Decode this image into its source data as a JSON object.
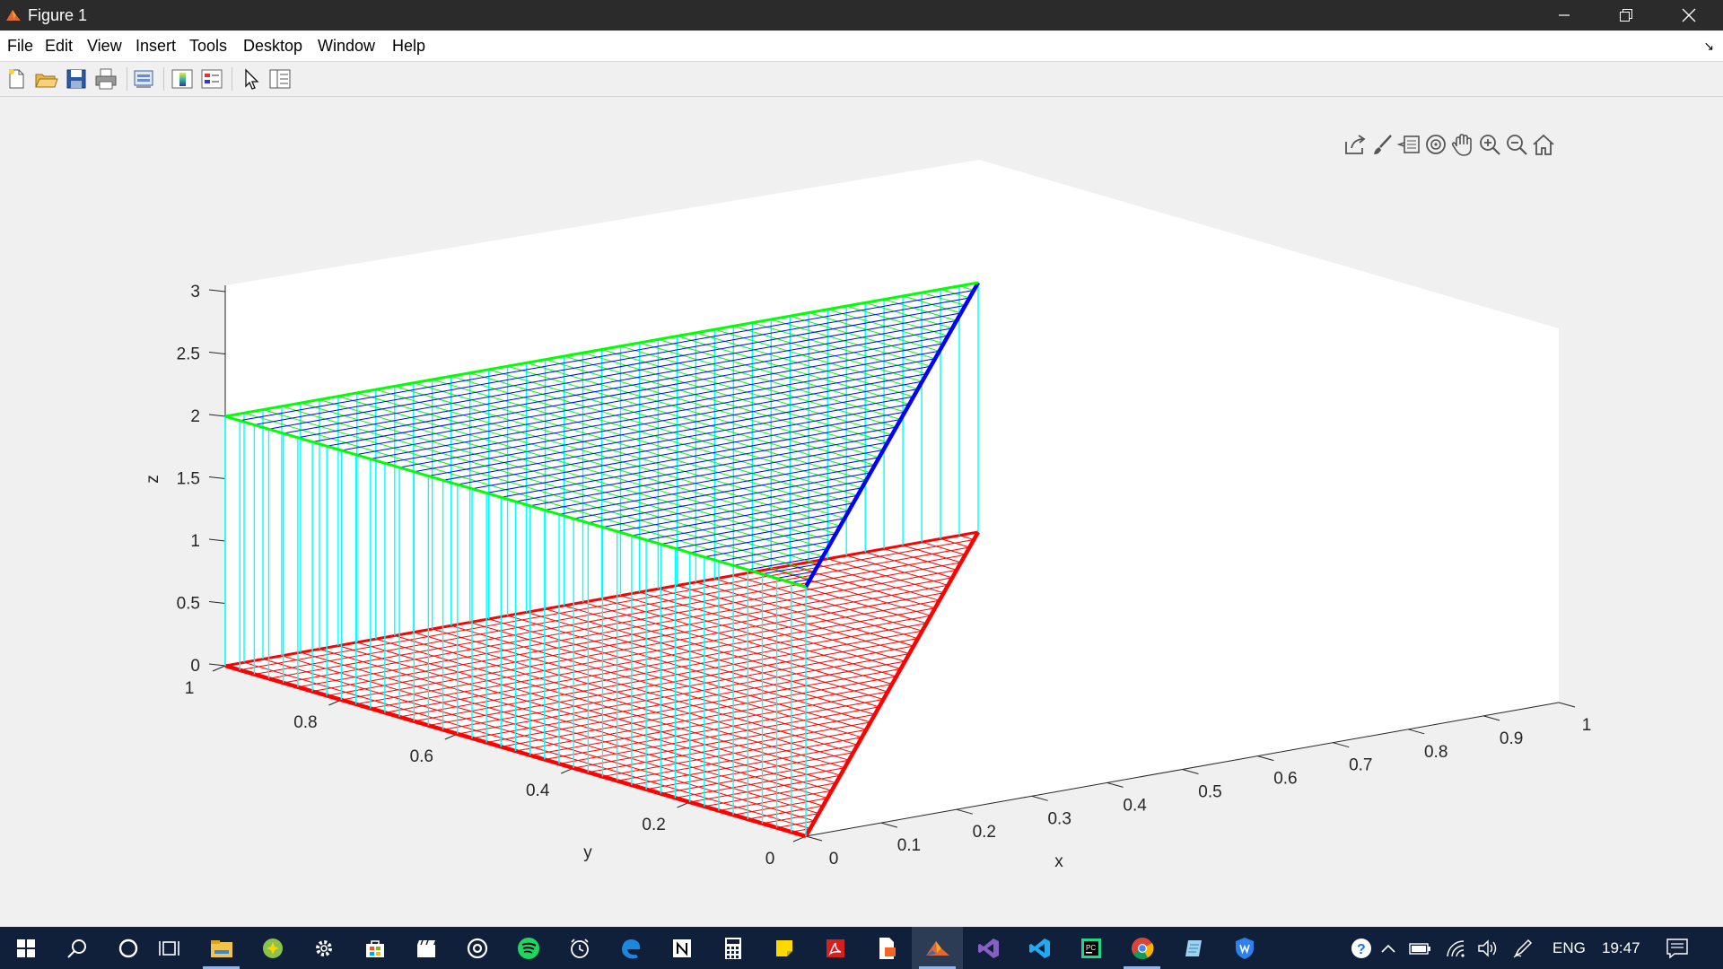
{
  "window": {
    "title": "Figure 1"
  },
  "menu": [
    "File",
    "Edit",
    "View",
    "Insert",
    "Tools",
    "Desktop",
    "Window",
    "Help"
  ],
  "toolbar_icons": [
    "new-figure-icon",
    "open-file-icon",
    "save-icon",
    "print-icon",
    "print-preview-icon",
    "colorbar-icon",
    "legend-icon",
    "edit-plot-icon",
    "property-inspector-icon"
  ],
  "axes_toolbar_icons": [
    "export-icon",
    "brush-icon",
    "data-tips-icon",
    "rotate-3d-icon",
    "pan-icon",
    "zoom-in-icon",
    "zoom-out-icon",
    "home-icon"
  ],
  "chart_data": {
    "type": "3d-mesh",
    "title": "",
    "xlabel": "x",
    "ylabel": "y",
    "zlabel": "z",
    "xlim": [
      0,
      1
    ],
    "ylim": [
      0,
      1
    ],
    "zlim": [
      0,
      3
    ],
    "x_ticks": [
      "0",
      "0.1",
      "0.2",
      "0.3",
      "0.4",
      "0.5",
      "0.6",
      "0.7",
      "0.8",
      "0.9",
      "1"
    ],
    "y_ticks": [
      "0",
      "0.2",
      "0.4",
      "0.6",
      "0.8",
      "1"
    ],
    "z_ticks": [
      "0",
      "0.5",
      "1",
      "1.5",
      "2",
      "2.5",
      "3"
    ],
    "surfaces": [
      {
        "name": "",
        "z": 0,
        "color": "#ff0000",
        "region": "x <= y (triangle)"
      },
      {
        "name": "",
        "z": 2,
        "color": "#00ff00",
        "secondary_color": "#0000ff",
        "region": "x <= y (triangle)"
      }
    ],
    "connectors": {
      "color": "#00ffff",
      "from_z": 0,
      "to_z": 2
    }
  },
  "taskbar": {
    "apps": [
      "start-icon",
      "search-icon",
      "cortana-icon",
      "task-view-icon",
      "file-explorer-icon",
      "android-app-icon",
      "settings-icon",
      "store-icon",
      "video-editor-icon",
      "groove-icon",
      "spotify-icon",
      "alarms-icon",
      "edge-icon",
      "notion-icon",
      "calculator-icon",
      "sticky-notes-icon",
      "acrobat-icon",
      "file-viewer-icon",
      "matlab-icon",
      "visual-studio-icon",
      "vscode-icon",
      "pycharm-icon",
      "chrome-icon",
      "notepad-icon",
      "vpn-icon"
    ],
    "tray": {
      "language": "ENG",
      "time": "19:47"
    }
  }
}
